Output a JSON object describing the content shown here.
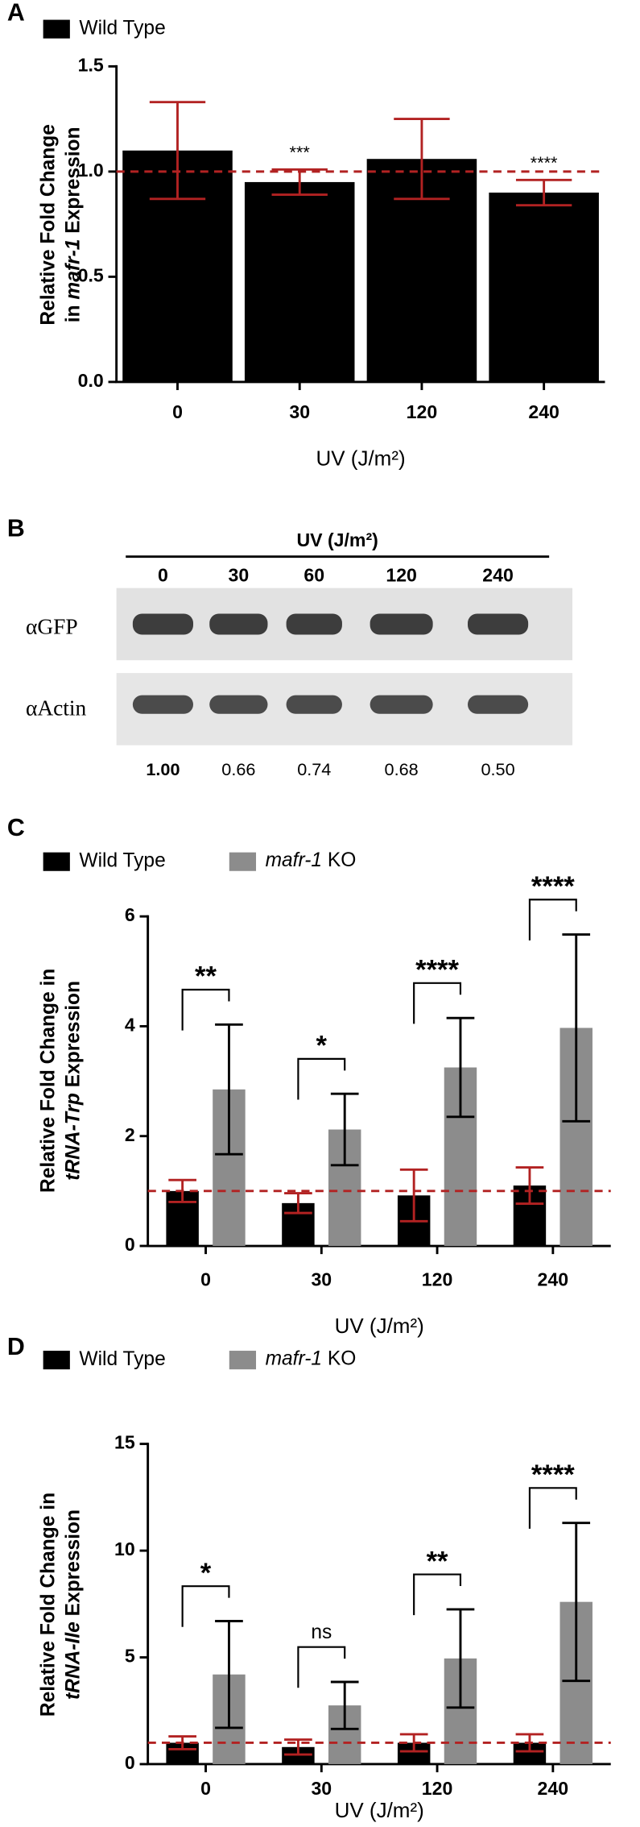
{
  "chart_data": [
    {
      "panel": "A",
      "type": "bar",
      "categories": [
        "0",
        "30",
        "120",
        "240"
      ],
      "series": [
        {
          "name": "Wild Type",
          "color": "#000000",
          "values": [
            1.1,
            0.95,
            1.06,
            0.9
          ],
          "errors": [
            0.23,
            0.06,
            0.19,
            0.06
          ],
          "error_color": "#b22222"
        }
      ],
      "annotations": [
        null,
        "***",
        null,
        "****"
      ],
      "ylim": [
        0,
        1.5
      ],
      "yticks": [
        {
          "value": 0,
          "label": "0.0"
        },
        {
          "value": 0.5,
          "label": "0.5"
        },
        {
          "value": 1,
          "label": "1.0"
        },
        {
          "value": 1.5,
          "label": "1.5"
        }
      ],
      "refline": 1,
      "refline_color": "#b22222",
      "xlabel": "UV (J/m²)",
      "ylabel": [
        "Relative Fold Change",
        "in mafr-1 Expression"
      ],
      "ylabel_italic": "mafr-1"
    },
    {
      "panel": "C",
      "type": "grouped_bar",
      "categories": [
        "0",
        "30",
        "120",
        "240"
      ],
      "series": [
        {
          "name": "Wild Type",
          "color": "#000000",
          "values": [
            1.0,
            0.78,
            0.92,
            1.1
          ],
          "errors": [
            0.2,
            0.18,
            0.47,
            0.33
          ],
          "error_color": "#b22222"
        },
        {
          "name": "mafr-1 KO",
          "italic": "mafr-1",
          "color": "#8c8c8c",
          "values": [
            2.85,
            2.12,
            3.25,
            3.97
          ],
          "errors": [
            1.18,
            0.65,
            0.9,
            1.7
          ],
          "error_color": "#000000"
        }
      ],
      "annotations": [
        "**",
        "*",
        "****",
        "****"
      ],
      "ylim": [
        0,
        6
      ],
      "yticks": [
        0,
        2,
        4,
        6
      ],
      "refline": 1,
      "refline_color": "#b22222",
      "xlabel": "UV (J/m²)",
      "ylabel": [
        "Relative Fold Change in",
        "tRNA-Trp Expression"
      ],
      "ylabel_italic": "tRNA-Trp"
    },
    {
      "panel": "D",
      "type": "grouped_bar",
      "categories": [
        "0",
        "30",
        "120",
        "240"
      ],
      "series": [
        {
          "name": "Wild Type",
          "color": "#000000",
          "values": [
            1.0,
            0.8,
            1.0,
            1.0
          ],
          "errors": [
            0.3,
            0.35,
            0.4,
            0.4
          ],
          "error_color": "#b22222"
        },
        {
          "name": "mafr-1 KO",
          "italic": "mafr-1",
          "color": "#8c8c8c",
          "values": [
            4.2,
            2.75,
            4.95,
            7.6
          ],
          "errors": [
            2.5,
            1.1,
            2.3,
            3.7
          ],
          "error_color": "#000000"
        }
      ],
      "annotations": [
        "*",
        "ns",
        "**",
        "****"
      ],
      "ylim": [
        0,
        15
      ],
      "yticks": [
        0,
        5,
        10,
        15
      ],
      "refline": 1,
      "refline_color": "#b22222",
      "xlabel": "UV (J/m²)",
      "ylabel": [
        "Relative Fold Change in",
        "tRNA-Ile Expression"
      ],
      "ylabel_italic": "tRNA-Ile"
    }
  ],
  "blot": {
    "panel": "B",
    "title": "UV (J/m²)",
    "lanes": [
      "0",
      "30",
      "60",
      "120",
      "240"
    ],
    "rows": [
      "αGFP",
      "αActin"
    ],
    "quantification": [
      "1.00",
      "0.66",
      "0.74",
      "0.68",
      "0.50"
    ]
  }
}
